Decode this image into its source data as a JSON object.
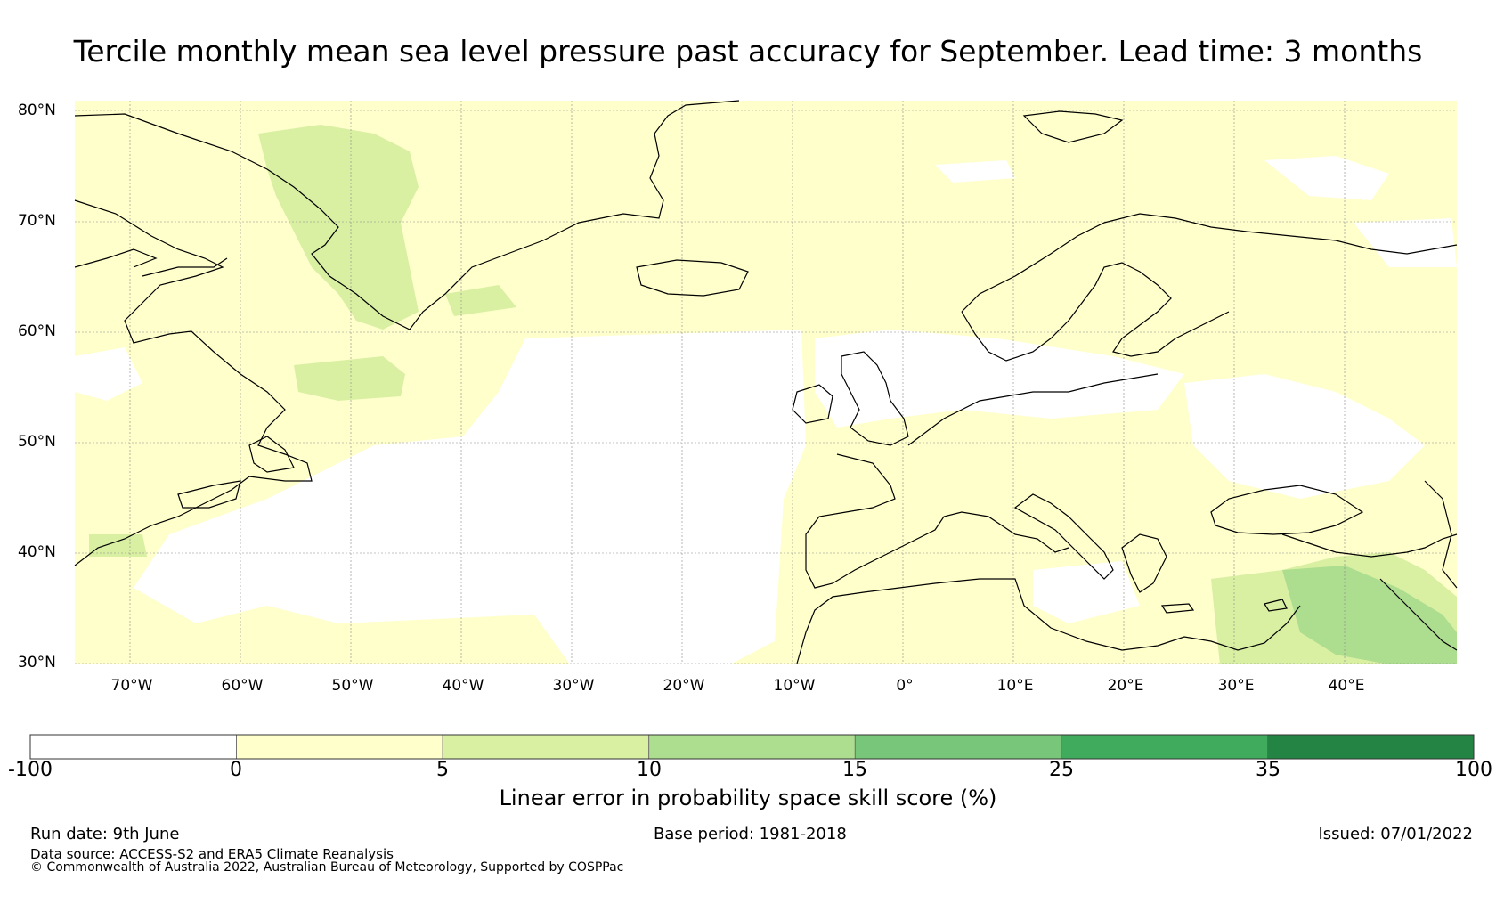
{
  "title": "Tercile monthly mean sea level pressure past accuracy for September. Lead time: 3 months",
  "map": {
    "lat_labels": [
      "80°N",
      "70°N",
      "60°N",
      "50°N",
      "40°N",
      "30°N"
    ],
    "lon_labels": [
      "70°W",
      "60°W",
      "50°W",
      "40°W",
      "30°W",
      "20°W",
      "10°W",
      "0°",
      "10°E",
      "20°E",
      "30°E",
      "40°E"
    ],
    "extent": {
      "lon": [
        -75,
        50
      ],
      "lat": [
        30,
        81
      ]
    },
    "regions": [
      {
        "name": "greenland-interior",
        "category": "5-10"
      },
      {
        "name": "labrador-sea",
        "category": "5-10"
      },
      {
        "name": "central-north-atlantic",
        "category": "-100-0"
      },
      {
        "name": "north-sea-baltic",
        "category": "-100-0"
      },
      {
        "name": "eastern-mediterranean-middle-east",
        "category": "10-15"
      },
      {
        "name": "background",
        "category": "0-5"
      }
    ]
  },
  "colorbar": {
    "ticks": [
      "-100",
      "0",
      "5",
      "10",
      "15",
      "25",
      "35",
      "100"
    ],
    "colors": [
      "#ffffff",
      "#ffffcc",
      "#d9f0a3",
      "#addd8e",
      "#78c679",
      "#41ab5d",
      "#238443"
    ],
    "label": "Linear error in probability space skill score (%)"
  },
  "footer": {
    "run_date": "Run date: 9th June",
    "base_period": "Base period: 1981-2018",
    "issued": "Issued: 07/01/2022",
    "data_source": "Data source: ACCESS-S2 and ERA5 Climate Reanalysis",
    "copyright": "© Commonwealth of Australia 2022, Australian Bureau of Meteorology, Supported by COSPPac"
  }
}
